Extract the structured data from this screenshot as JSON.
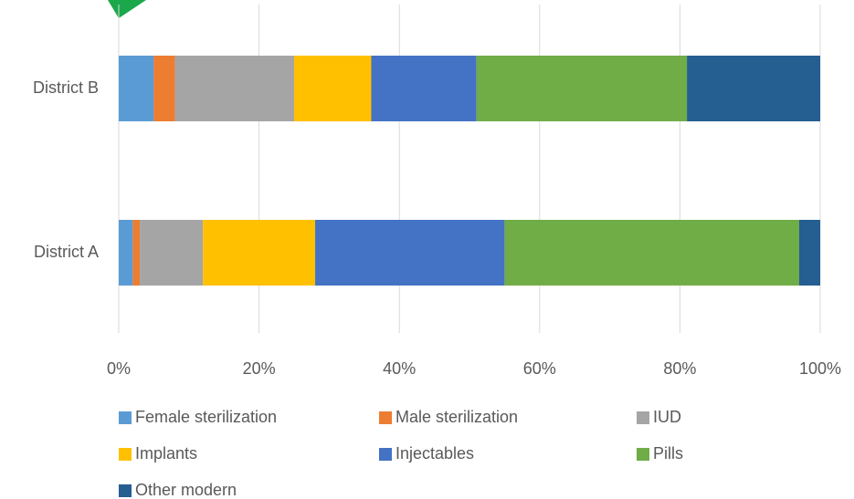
{
  "chart_data": {
    "type": "stacked_barh",
    "categories": [
      "District B",
      "District A"
    ],
    "series": [
      {
        "name": "Female sterilization",
        "color": "#5b9bd5",
        "values": [
          5,
          2
        ]
      },
      {
        "name": "Male sterilization",
        "color": "#ed7d31",
        "values": [
          3,
          1
        ]
      },
      {
        "name": "IUD",
        "color": "#a5a5a5",
        "values": [
          17,
          9
        ]
      },
      {
        "name": "Implants",
        "color": "#ffc000",
        "values": [
          11,
          16
        ]
      },
      {
        "name": "Injectables",
        "color": "#4472c4",
        "values": [
          15,
          27
        ]
      },
      {
        "name": "Pills",
        "color": "#70ad47",
        "values": [
          30,
          42
        ]
      },
      {
        "name": "Other modern",
        "color": "#255e91",
        "values": [
          19,
          3
        ]
      }
    ],
    "xlim": [
      0,
      100
    ],
    "xticks": [
      {
        "value": 0,
        "label": "0%"
      },
      {
        "value": 20,
        "label": "20%"
      },
      {
        "value": 40,
        "label": "40%"
      },
      {
        "value": 60,
        "label": "60%"
      },
      {
        "value": 80,
        "label": "80%"
      },
      {
        "value": 100,
        "label": "100%"
      }
    ],
    "grid": true
  }
}
